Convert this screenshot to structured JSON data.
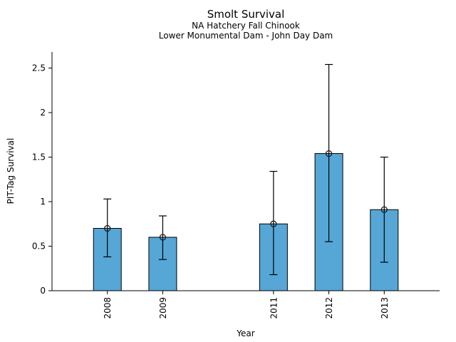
{
  "chart_data": {
    "type": "bar",
    "title": "Smolt Survival",
    "subtitles": [
      "NA Hatchery Fall Chinook",
      "Lower Monumental Dam - John Day Dam"
    ],
    "xlabel": "Year",
    "ylabel": "PIT-Tag Survival",
    "categories": [
      "2008",
      "2009",
      "2011",
      "2012",
      "2013"
    ],
    "x_values": [
      2008,
      2009,
      2011,
      2012,
      2013
    ],
    "values": [
      0.7,
      0.6,
      0.75,
      1.54,
      0.91
    ],
    "error_low": [
      0.38,
      0.35,
      0.18,
      0.55,
      0.32
    ],
    "error_high": [
      1.03,
      0.84,
      1.34,
      2.54,
      1.5
    ],
    "yticks": [
      0,
      0.5,
      1,
      1.5,
      2,
      2.5
    ],
    "ytick_labels": [
      "0",
      "0.5",
      "1",
      "1.5",
      "2",
      "2.5"
    ],
    "ylim": [
      0,
      2.68
    ],
    "xlim": [
      2007,
      2014
    ],
    "x_tick_rotation": 90,
    "grid": false,
    "legend_position": "none",
    "bar_color": "#56a6d6",
    "bar_edge_color": "#000000",
    "error_color": "#000000",
    "marker": "open-circle",
    "marker_color": "#1a1a1a"
  }
}
